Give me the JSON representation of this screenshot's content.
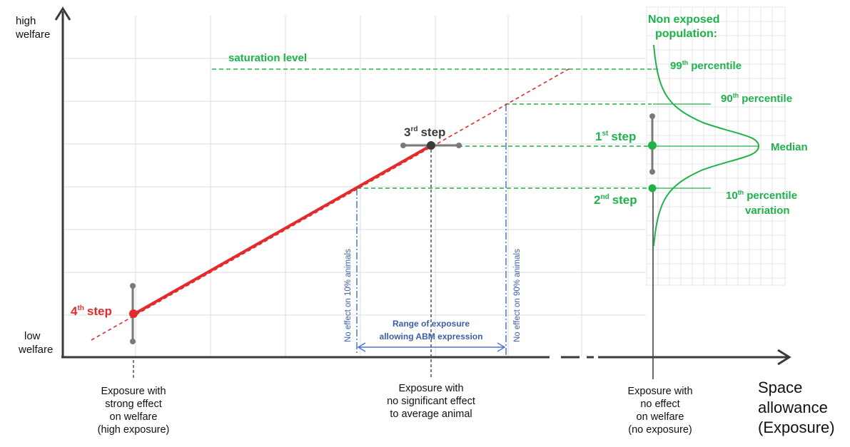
{
  "y_axis": {
    "high_line1": "high",
    "high_line2": "welfare",
    "low_line1": "low",
    "low_line2": "welfare"
  },
  "x_axis": {
    "title_line1": "Space",
    "title_line2": "allowance",
    "title_line3": "(Exposure)"
  },
  "labels": {
    "saturation": "saturation level",
    "non_exposed_line1": "Non exposed",
    "non_exposed_line2": "population:",
    "p99_num": "99",
    "p99_sup": "th",
    "p99_rest": "percentile",
    "p90_num": "90",
    "p90_sup": "th",
    "p90_rest": "percentile",
    "median": "Median",
    "p10_num": "10",
    "p10_sup": "th",
    "p10_rest": "percentile",
    "variation": "variation",
    "step1_num": "1",
    "step1_sup": "st",
    "step1_rest": "step",
    "step2_num": "2",
    "step2_sup": "nd",
    "step2_rest": "step",
    "step3_num": "3",
    "step3_sup": "rd",
    "step3_rest": "step",
    "step4_num": "4",
    "step4_sup": "th",
    "step4_rest": "step",
    "no_effect_10": "No effect on 10% animals",
    "no_effect_90": "No effect on 90% animals",
    "range_line1": "Range of exposure",
    "range_line2": "allowing ABM expression"
  },
  "bottom": {
    "high": [
      "Exposure with",
      "strong effect",
      "on welfare",
      "(high exposure)"
    ],
    "mid": [
      "Exposure with",
      "no significant effect",
      "to average animal"
    ],
    "none": [
      "Exposure with",
      "no effect",
      "on welfare",
      "(no exposure)"
    ]
  },
  "colors": {
    "green": "#1fb24a",
    "red": "#e32b2b",
    "blue": "#4a78c8",
    "grey": "#7a7a7a",
    "axis": "#3a3a3a"
  }
}
